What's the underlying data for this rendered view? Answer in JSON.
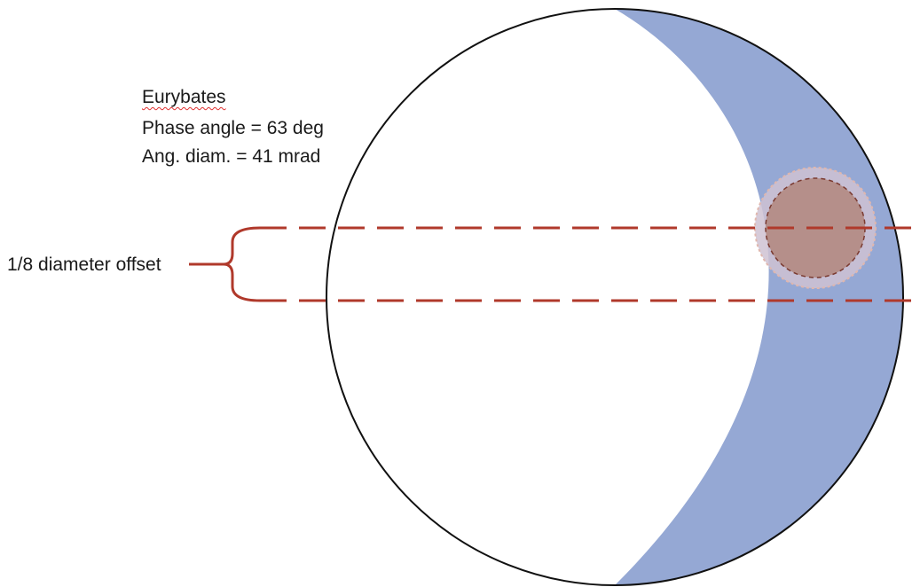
{
  "target": {
    "name": "Eurybates",
    "phase_angle_text": "Phase angle = 63 deg",
    "angular_diameter_text": "Ang. diam. = 41 mrad"
  },
  "offset_label": "1/8 diameter offset",
  "colors": {
    "shadow": "#95a8d4",
    "disk_outline": "#111111",
    "scan_line": "#b0392b",
    "footprint_fill": "#b58f8a",
    "footprint_halo": "#cfc2d2"
  }
}
